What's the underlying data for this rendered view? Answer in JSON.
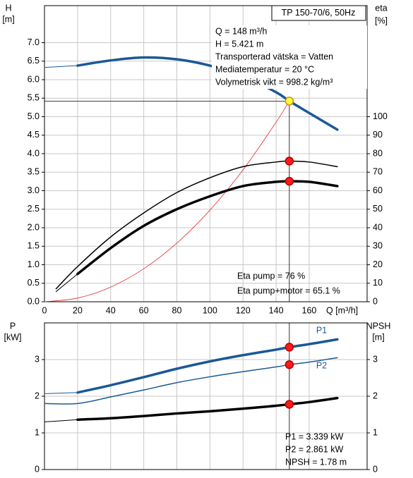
{
  "chart_data": [
    {
      "type": "line",
      "title": "TP 150-70/6, 50Hz",
      "ylabel": "H",
      "yunit": "[m]",
      "y2label": "eta",
      "y2unit": "[%]",
      "xlabel": "Q [m³/h]",
      "xlim": [
        0,
        195
      ],
      "ylim": [
        0,
        8
      ],
      "y2lim": [
        0,
        160
      ],
      "show_xtick_labels": true,
      "xticks": [
        0,
        20,
        40,
        60,
        80,
        100,
        120,
        140,
        160
      ],
      "yticks": [
        {
          "value": 0,
          "label": "0.0"
        },
        0.5,
        {
          "value": 1,
          "label": "1.0"
        },
        1.5,
        {
          "value": 2,
          "label": "2.0"
        },
        2.5,
        {
          "value": 3,
          "label": "3.0"
        },
        3.5,
        {
          "value": 4,
          "label": "4.0"
        },
        4.5,
        {
          "value": 5,
          "label": "5.0"
        },
        5.5,
        {
          "value": 6,
          "label": "6.0"
        },
        6.5,
        {
          "value": 7,
          "label": "7.0"
        }
      ],
      "y2ticks": [
        0,
        10,
        20,
        30,
        40,
        50,
        60,
        70,
        80,
        90,
        100
      ],
      "grid": true,
      "crosshair_series": 1,
      "series": [
        {
          "color": "#1b5896",
          "width": 1,
          "x": [
            0,
            20
          ],
          "values": [
            6.33,
            6.38
          ]
        },
        {
          "color": "#1b5896",
          "width": 3.5,
          "x": [
            20,
            40,
            60,
            80,
            100,
            120,
            140,
            148,
            160,
            177
          ],
          "values": [
            6.38,
            6.52,
            6.6,
            6.55,
            6.38,
            6.1,
            5.66,
            5.421,
            5.1,
            4.65
          ],
          "marker": {
            "index": 7,
            "color": "#ffff40",
            "stroke": "#c89000"
          }
        },
        {
          "color": "#e03030",
          "width": 0.8,
          "x": [
            0,
            20,
            40,
            60,
            80,
            100,
            120,
            140,
            148
          ],
          "values": [
            0,
            0.099,
            0.396,
            0.891,
            1.584,
            2.475,
            3.564,
            4.851,
            5.421
          ]
        },
        {
          "color": "#000000",
          "width": 1.5,
          "axis": "y2",
          "x": [
            7,
            20,
            40,
            60,
            80,
            100,
            120,
            140,
            148,
            160,
            177
          ],
          "values": [
            7,
            19,
            35,
            48,
            59,
            67,
            73,
            75.5,
            76,
            75.5,
            73
          ],
          "marker": {
            "index": 8,
            "color": "#ff1a1a",
            "stroke": "#b00000"
          }
        },
        {
          "color": "#000000",
          "width": 1,
          "axis": "y2",
          "x": [
            7,
            20
          ],
          "values": [
            5.5,
            15
          ]
        },
        {
          "color": "#000000",
          "width": 3.5,
          "axis": "y2",
          "x": [
            20,
            40,
            60,
            80,
            100,
            120,
            140,
            148,
            160,
            177
          ],
          "values": [
            15,
            29,
            41,
            50,
            57,
            62.5,
            64.8,
            65.1,
            64.8,
            62.5
          ],
          "marker": {
            "index": 7,
            "color": "#ff1a1a",
            "stroke": "#b00000"
          }
        }
      ],
      "annotations": [
        "Q = 148 m³/h",
        "H = 5.421 m",
        "Transporterad vätska = Vatten",
        "Mediatemperatur = 20 °C",
        "Volymetrisk vikt = 998.2 kg/m³",
        "Eta pump = 76 %",
        "Eta pump+motor = 65.1 %"
      ]
    },
    {
      "type": "line",
      "ylabel": "P",
      "yunit": "[kW]",
      "y2label": "NPSH",
      "y2unit": "[m]",
      "xlim": [
        0,
        195
      ],
      "ylim": [
        0,
        4
      ],
      "y2lim": [
        0,
        4
      ],
      "show_xtick_labels": false,
      "xticks": [
        0,
        20,
        40,
        60,
        80,
        100,
        120,
        140,
        160
      ],
      "yticks": [
        0,
        1,
        2,
        3
      ],
      "y2ticks": [
        0,
        1,
        2,
        3
      ],
      "grid": true,
      "crosshair_series": 1,
      "series": [
        {
          "color": "#1b5896",
          "width": 1,
          "x": [
            0,
            20
          ],
          "values": [
            2.07,
            2.1
          ]
        },
        {
          "name": "P1",
          "color": "#1b5896",
          "width": 3.5,
          "x": [
            20,
            40,
            60,
            80,
            100,
            120,
            140,
            148,
            160,
            177
          ],
          "values": [
            2.1,
            2.3,
            2.52,
            2.75,
            2.95,
            3.12,
            3.27,
            3.339,
            3.42,
            3.55
          ],
          "marker": {
            "index": 7,
            "color": "#ff1a1a",
            "stroke": "#b00000"
          }
        },
        {
          "name": "P2",
          "color": "#1b5896",
          "width": 1.5,
          "x": [
            0,
            20,
            40,
            60,
            80,
            100,
            120,
            140,
            148,
            160,
            177
          ],
          "values": [
            1.8,
            1.8,
            1.98,
            2.17,
            2.37,
            2.53,
            2.67,
            2.8,
            2.861,
            2.93,
            3.05
          ],
          "marker": {
            "index": 8,
            "color": "#ff1a1a",
            "stroke": "#b00000"
          }
        },
        {
          "color": "#000000",
          "width": 1,
          "axis": "y2",
          "x": [
            0,
            20
          ],
          "values": [
            1.3,
            1.36
          ]
        },
        {
          "color": "#000000",
          "width": 3.5,
          "axis": "y2",
          "x": [
            20,
            40,
            60,
            80,
            100,
            120,
            140,
            148,
            160,
            177
          ],
          "values": [
            1.36,
            1.4,
            1.46,
            1.53,
            1.59,
            1.66,
            1.74,
            1.78,
            1.84,
            1.95
          ],
          "marker": {
            "index": 7,
            "color": "#ff1a1a",
            "stroke": "#b00000"
          }
        }
      ],
      "annotations": [
        "P1 = 3.339 kW",
        "P2 = 2.861 kW",
        "NPSH = 1.78 m"
      ]
    }
  ]
}
